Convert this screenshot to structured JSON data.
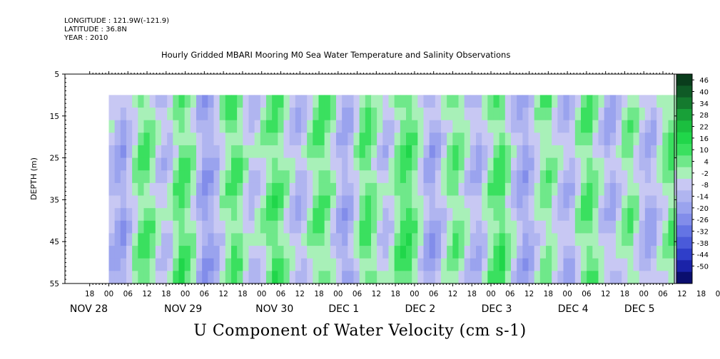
{
  "header": {
    "longitude": "LONGITUDE : 121.9W(-121.9)",
    "latitude": "LATITUDE : 36.8N",
    "year": "YEAR : 2010",
    "title": "Hourly Gridded MBARI Mooring M0 Sea Water Temperature and Salinity Observations"
  },
  "footer": {
    "variable_title": "U Component of Water Velocity (cm s-1)"
  },
  "chart_data": {
    "type": "heatmap",
    "title": "Hourly Gridded MBARI Mooring M0 Sea Water Temperature and Salinity Observations",
    "xlabel": "",
    "ylabel": "DEPTH (m)",
    "y_ticks": [
      "5",
      "15",
      "25",
      "35",
      "45",
      "55"
    ],
    "ylim": [
      5,
      55
    ],
    "y_inverted": true,
    "data_depth_range": [
      10,
      55
    ],
    "x_hour_ticks": [
      "18",
      "00",
      "06",
      "12",
      "18",
      "00",
      "06",
      "12",
      "18",
      "00",
      "06",
      "12",
      "18",
      "00",
      "06",
      "12",
      "18",
      "00",
      "06",
      "12",
      "18",
      "00",
      "06",
      "12",
      "18",
      "00",
      "06",
      "12",
      "18",
      "00",
      "06",
      "12",
      "18",
      "00",
      "06",
      "12",
      "18"
    ],
    "x_day_labels": [
      "NOV 28",
      "NOV 29",
      "NOV 30",
      "DEC  1",
      "DEC  2",
      "DEC  3",
      "DEC  4",
      "DEC  5"
    ],
    "x_start": "2010-11-27T18:00",
    "x_end": "2010-12-05T18:00",
    "data_x_start": "2010-11-28T00:00",
    "colorbar": {
      "labels": [
        "46",
        "40",
        "34",
        "28",
        "22",
        "16",
        "10",
        "4",
        "-2",
        "-8",
        "-14",
        "-20",
        "-26",
        "-32",
        "-38",
        "-44",
        "-50"
      ],
      "min": -50,
      "max": 49
    },
    "colors": {
      "positive": "#22dd55",
      "near_zero": "#a8f0b8",
      "negative": "#9aa6ef"
    },
    "pattern": "Alternating bands of positive (green) and negative (blue/purple) velocity roughly every 6-12 hours; values mostly between -14 and 16 cm/s",
    "column_means": [
      -3,
      -8,
      -10,
      -4,
      4,
      10,
      12,
      6,
      -2,
      -6,
      -4,
      6,
      12,
      10,
      4,
      -6,
      -12,
      -10,
      -4,
      4,
      10,
      14,
      10,
      2,
      -4,
      -2,
      2,
      8,
      12,
      8,
      2,
      -4,
      -8,
      -4,
      4,
      10,
      14,
      10,
      4,
      -4,
      -10,
      -6,
      2,
      10,
      12,
      6,
      -2,
      -6,
      -2,
      6,
      12,
      14,
      8,
      2,
      -6,
      -10,
      -6,
      2,
      8,
      12,
      8,
      0,
      -6,
      -8,
      -2,
      6,
      10,
      12,
      4,
      -4,
      -10,
      -12,
      -6,
      2,
      8,
      10,
      4,
      -2,
      -6,
      -4,
      4,
      10,
      12,
      6,
      -2,
      -8,
      -10,
      -4,
      4,
      8,
      4,
      -4,
      -8,
      -6,
      2,
      8,
      12,
      8,
      2,
      -4
    ]
  }
}
